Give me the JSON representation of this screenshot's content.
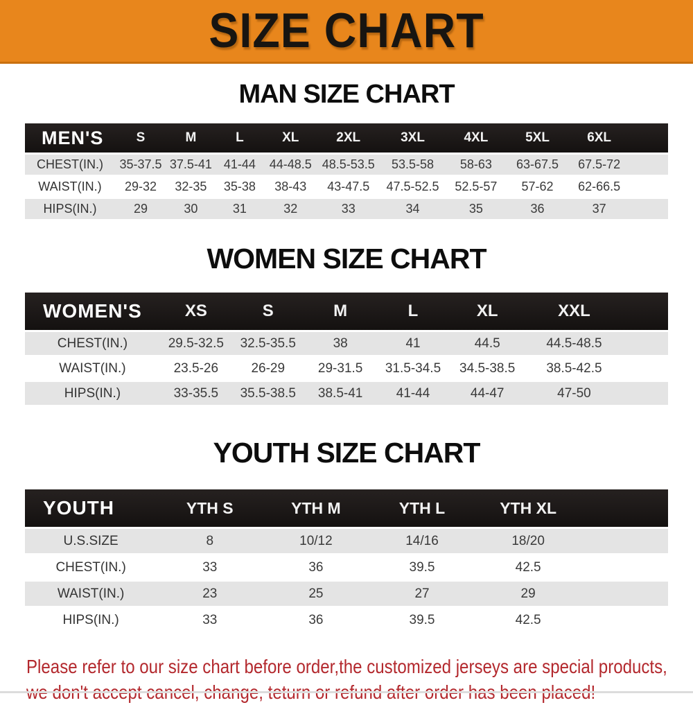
{
  "banner": {
    "title": "SIZE CHART",
    "bg_color": "#E8861C",
    "text_color": "#181511"
  },
  "sections": [
    {
      "heading": "MAN SIZE CHART",
      "table": {
        "label": "MEN'S",
        "columns": [
          "S",
          "M",
          "L",
          "XL",
          "2XL",
          "3XL",
          "4XL",
          "5XL",
          "6XL"
        ],
        "rows": [
          {
            "label": "CHEST(IN.)",
            "values": [
              "35-37.5",
              "37.5-41",
              "41-44",
              "44-48.5",
              "48.5-53.5",
              "53.5-58",
              "58-63",
              "63-67.5",
              "67.5-72"
            ]
          },
          {
            "label": "WAIST(IN.)",
            "values": [
              "29-32",
              "32-35",
              "35-38",
              "38-43",
              "43-47.5",
              "47.5-52.5",
              "52.5-57",
              "57-62",
              "62-66.5"
            ]
          },
          {
            "label": "HIPS(IN.)",
            "values": [
              "29",
              "30",
              "31",
              "32",
              "33",
              "34",
              "35",
              "36",
              "37"
            ]
          }
        ]
      }
    },
    {
      "heading": "WOMEN SIZE CHART",
      "table": {
        "label": "WOMEN'S",
        "columns": [
          "XS",
          "S",
          "M",
          "L",
          "XL",
          "XXL"
        ],
        "rows": [
          {
            "label": "CHEST(IN.)",
            "values": [
              "29.5-32.5",
              "32.5-35.5",
              "38",
              "41",
              "44.5",
              "44.5-48.5"
            ]
          },
          {
            "label": "WAIST(IN.)",
            "values": [
              "23.5-26",
              "26-29",
              "29-31.5",
              "31.5-34.5",
              "34.5-38.5",
              "38.5-42.5"
            ]
          },
          {
            "label": "HIPS(IN.)",
            "values": [
              "33-35.5",
              "35.5-38.5",
              "38.5-41",
              "41-44",
              "44-47",
              "47-50"
            ]
          }
        ]
      }
    },
    {
      "heading": "YOUTH SIZE CHART",
      "table": {
        "label": "YOUTH",
        "columns": [
          "YTH S",
          "YTH M",
          "YTH L",
          "YTH XL"
        ],
        "rows": [
          {
            "label": "U.S.SIZE",
            "values": [
              "8",
              "10/12",
              "14/16",
              "18/20"
            ]
          },
          {
            "label": "CHEST(IN.)",
            "values": [
              "33",
              "36",
              "39.5",
              "42.5"
            ]
          },
          {
            "label": "WAIST(IN.)",
            "values": [
              "23",
              "25",
              "27",
              "29"
            ]
          },
          {
            "label": "HIPS(IN.)",
            "values": [
              "33",
              "36",
              "39.5",
              "42.5"
            ]
          }
        ]
      }
    }
  ],
  "footer": {
    "line1": "Please refer to our size chart before order,the customized jerseys are special products,",
    "line2": "we don't accept cancel, change, teturn or refund after order has been placed!",
    "text_color": "#B3282D"
  },
  "colors": {
    "accent_orange": "#E8861C",
    "header_black": "#171412",
    "row_stripe_gray": "#E4E4E4",
    "warning_red": "#B3282D"
  }
}
